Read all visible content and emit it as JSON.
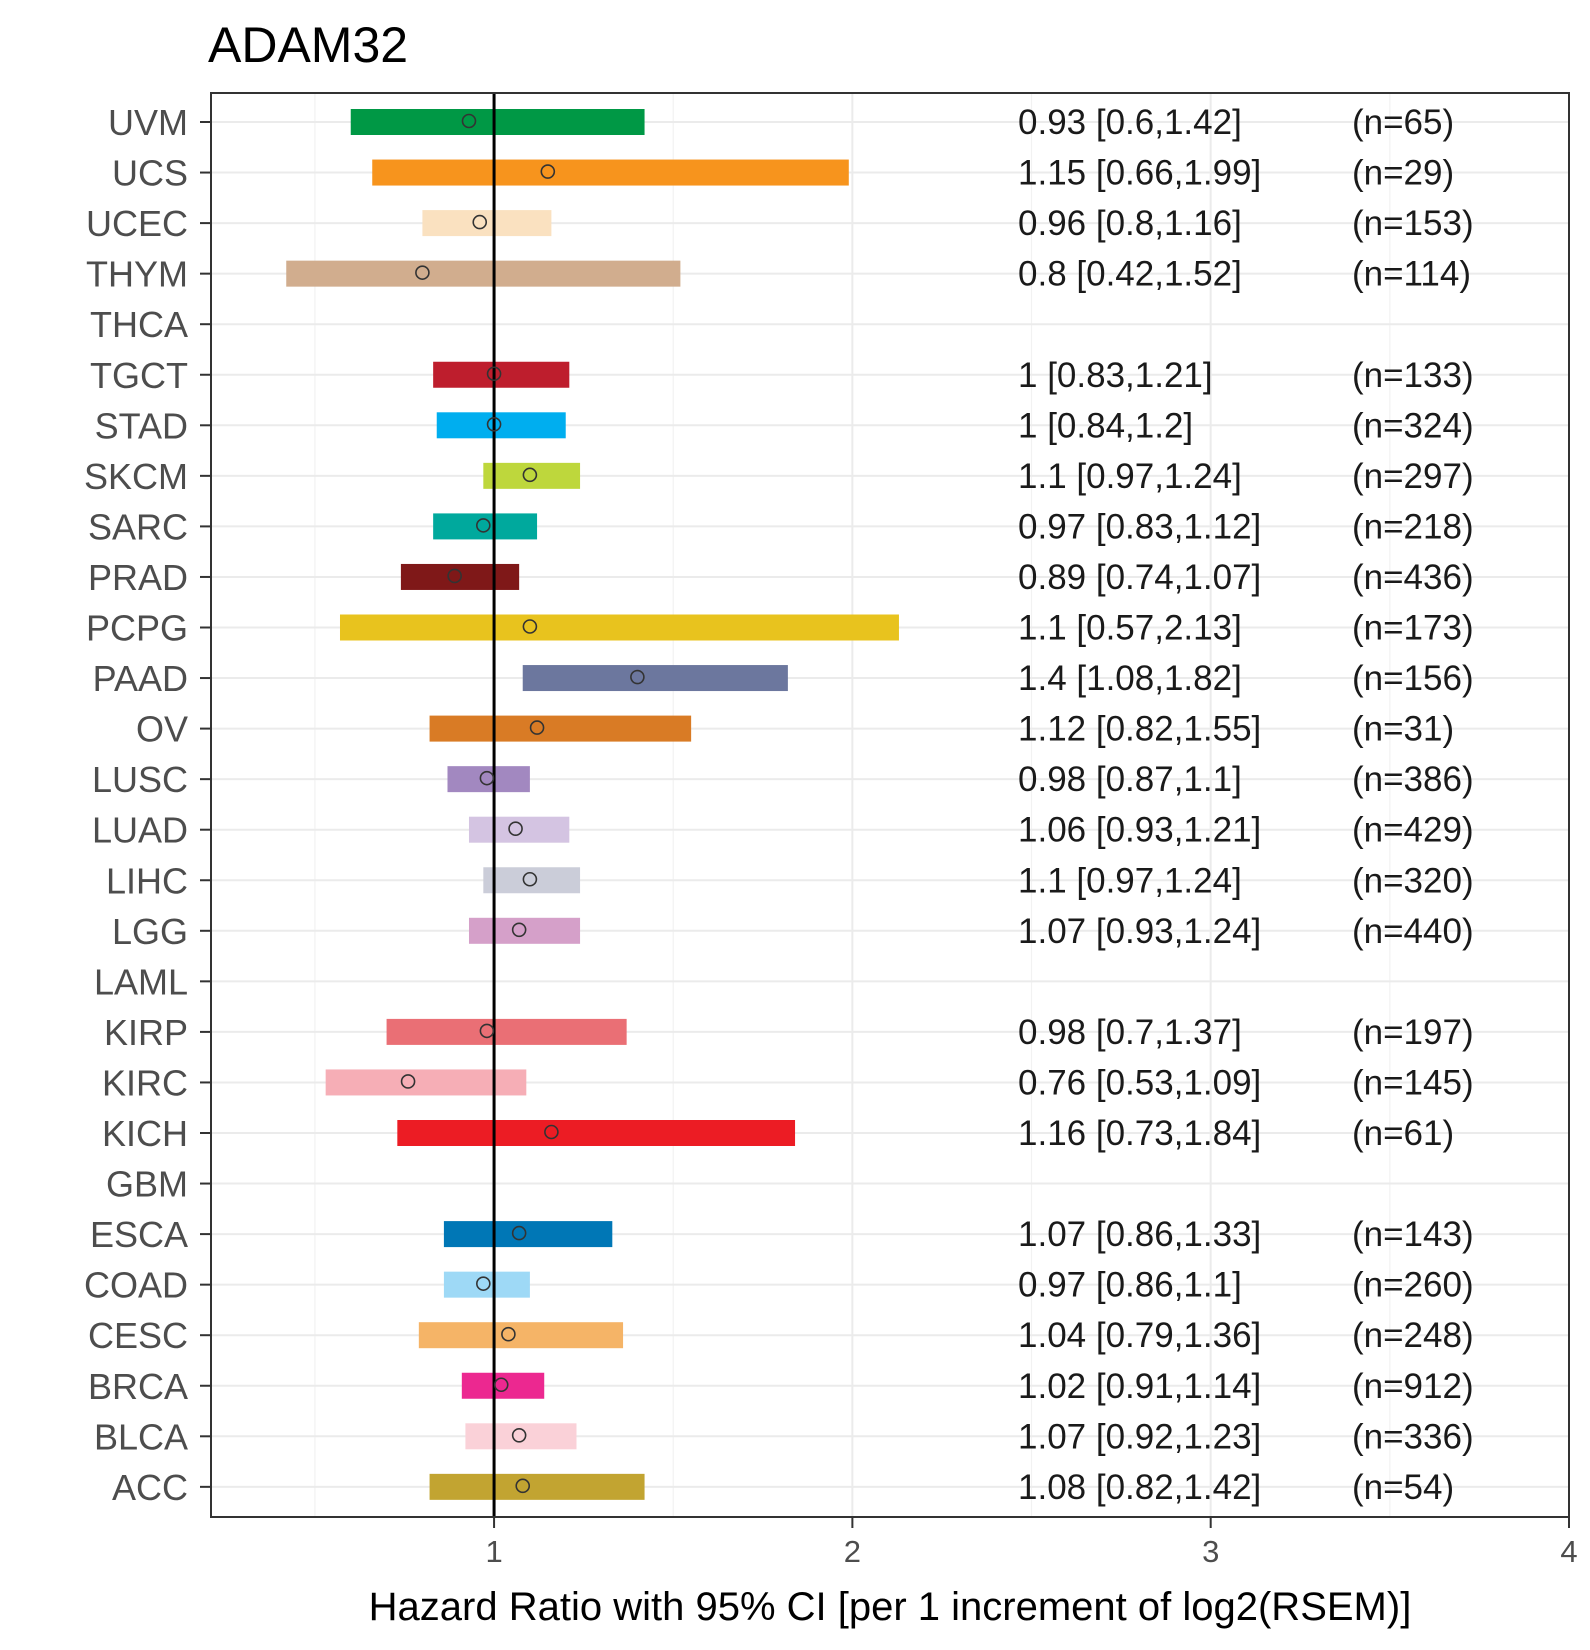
{
  "chart_data": {
    "type": "forest",
    "title": "ADAM32",
    "xlabel": "Hazard Ratio with 95% CI [per 1 increment of log2(RSEM)]",
    "ylabel": "",
    "xlim": [
      0.21,
      4.0
    ],
    "xticks": [
      1,
      2,
      3,
      4
    ],
    "reference_line": 1,
    "grid": true,
    "rows": [
      {
        "label": "UVM",
        "hr": 0.93,
        "low": 0.6,
        "high": 1.42,
        "color": "#009845",
        "text": "0.93 [0.6,1.42]",
        "n": "(n=65)"
      },
      {
        "label": "UCS",
        "hr": 1.15,
        "low": 0.66,
        "high": 1.99,
        "color": "#f7941d",
        "text": "1.15 [0.66,1.99]",
        "n": "(n=29)"
      },
      {
        "label": "UCEC",
        "hr": 0.96,
        "low": 0.8,
        "high": 1.16,
        "color": "#fae1c0",
        "text": "0.96 [0.8,1.16]",
        "n": "(n=153)"
      },
      {
        "label": "THYM",
        "hr": 0.8,
        "low": 0.42,
        "high": 1.52,
        "color": "#d1ad8e",
        "text": "0.8 [0.42,1.52]",
        "n": "(n=114)"
      },
      {
        "label": "THCA",
        "hr": null,
        "low": null,
        "high": null,
        "color": "",
        "text": "",
        "n": ""
      },
      {
        "label": "TGCT",
        "hr": 1,
        "low": 0.83,
        "high": 1.21,
        "color": "#be1e2d",
        "text": "1 [0.83,1.21]",
        "n": "(n=133)"
      },
      {
        "label": "STAD",
        "hr": 1,
        "low": 0.84,
        "high": 1.2,
        "color": "#00aeef",
        "text": "1 [0.84,1.2]",
        "n": "(n=324)"
      },
      {
        "label": "SKCM",
        "hr": 1.1,
        "low": 0.97,
        "high": 1.24,
        "color": "#bed73c",
        "text": "1.1 [0.97,1.24]",
        "n": "(n=297)"
      },
      {
        "label": "SARC",
        "hr": 0.97,
        "low": 0.83,
        "high": 1.12,
        "color": "#00a99d",
        "text": "0.97 [0.83,1.12]",
        "n": "(n=218)"
      },
      {
        "label": "PRAD",
        "hr": 0.89,
        "low": 0.74,
        "high": 1.07,
        "color": "#7f1818",
        "text": "0.89 [0.74,1.07]",
        "n": "(n=436)"
      },
      {
        "label": "PCPG",
        "hr": 1.1,
        "low": 0.57,
        "high": 2.13,
        "color": "#e8c31e",
        "text": "1.1 [0.57,2.13]",
        "n": "(n=173)"
      },
      {
        "label": "PAAD",
        "hr": 1.4,
        "low": 1.08,
        "high": 1.82,
        "color": "#6c779e",
        "text": "1.4 [1.08,1.82]",
        "n": "(n=156)"
      },
      {
        "label": "OV",
        "hr": 1.12,
        "low": 0.82,
        "high": 1.55,
        "color": "#d97b25",
        "text": "1.12 [0.82,1.55]",
        "n": "(n=31)"
      },
      {
        "label": "LUSC",
        "hr": 0.98,
        "low": 0.87,
        "high": 1.1,
        "color": "#a288c0",
        "text": "0.98 [0.87,1.1]",
        "n": "(n=386)"
      },
      {
        "label": "LUAD",
        "hr": 1.06,
        "low": 0.93,
        "high": 1.21,
        "color": "#d4c4e2",
        "text": "1.06 [0.93,1.21]",
        "n": "(n=429)"
      },
      {
        "label": "LIHC",
        "hr": 1.1,
        "low": 0.97,
        "high": 1.24,
        "color": "#cbcdd9",
        "text": "1.1 [0.97,1.24]",
        "n": "(n=320)"
      },
      {
        "label": "LGG",
        "hr": 1.07,
        "low": 0.93,
        "high": 1.24,
        "color": "#d5a0c9",
        "text": "1.07 [0.93,1.24]",
        "n": "(n=440)"
      },
      {
        "label": "LAML",
        "hr": null,
        "low": null,
        "high": null,
        "color": "",
        "text": "",
        "n": ""
      },
      {
        "label": "KIRP",
        "hr": 0.98,
        "low": 0.7,
        "high": 1.37,
        "color": "#ea6f75",
        "text": "0.98 [0.7,1.37]",
        "n": "(n=197)"
      },
      {
        "label": "KIRC",
        "hr": 0.76,
        "low": 0.53,
        "high": 1.09,
        "color": "#f6aeb6",
        "text": "0.76 [0.53,1.09]",
        "n": "(n=145)"
      },
      {
        "label": "KICH",
        "hr": 1.16,
        "low": 0.73,
        "high": 1.84,
        "color": "#ec1c24",
        "text": "1.16 [0.73,1.84]",
        "n": "(n=61)"
      },
      {
        "label": "GBM",
        "hr": null,
        "low": null,
        "high": null,
        "color": "",
        "text": "",
        "n": ""
      },
      {
        "label": "ESCA",
        "hr": 1.07,
        "low": 0.86,
        "high": 1.33,
        "color": "#0077b6",
        "text": "1.07 [0.86,1.33]",
        "n": "(n=143)"
      },
      {
        "label": "COAD",
        "hr": 0.97,
        "low": 0.86,
        "high": 1.1,
        "color": "#9ed9f6",
        "text": "0.97 [0.86,1.1]",
        "n": "(n=260)"
      },
      {
        "label": "CESC",
        "hr": 1.04,
        "low": 0.79,
        "high": 1.36,
        "color": "#f5b467",
        "text": "1.04 [0.79,1.36]",
        "n": "(n=248)"
      },
      {
        "label": "BRCA",
        "hr": 1.02,
        "low": 0.91,
        "high": 1.14,
        "color": "#ec2890",
        "text": "1.02 [0.91,1.14]",
        "n": "(n=912)"
      },
      {
        "label": "BLCA",
        "hr": 1.07,
        "low": 0.92,
        "high": 1.23,
        "color": "#fad1d8",
        "text": "1.07 [0.92,1.23]",
        "n": "(n=336)"
      },
      {
        "label": "ACC",
        "hr": 1.08,
        "low": 0.82,
        "high": 1.42,
        "color": "#c2a431",
        "text": "1.08 [0.82,1.42]",
        "n": "(n=54)"
      }
    ]
  }
}
